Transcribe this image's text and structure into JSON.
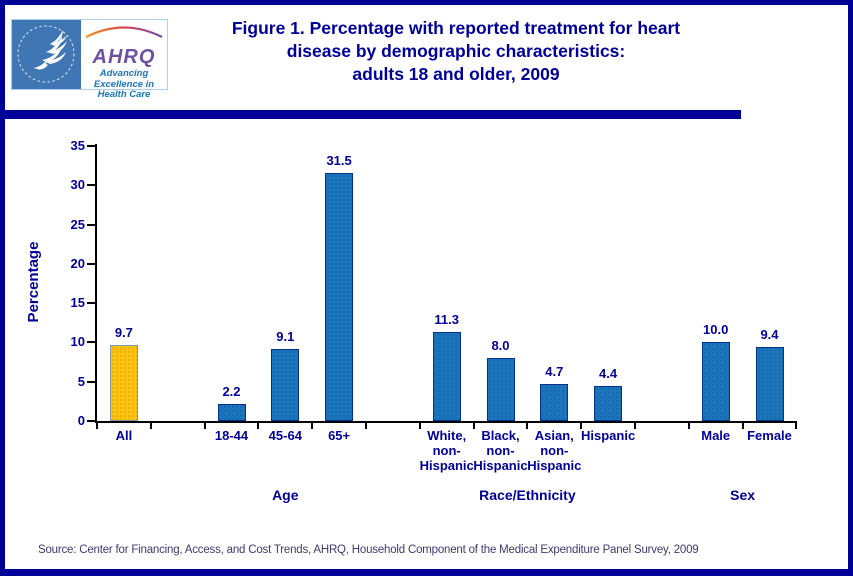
{
  "header": {
    "title_lines": [
      "Figure 1. Percentage with reported treatment for heart",
      "disease by demographic characteristics:",
      "adults 18 and older, 2009"
    ],
    "logo": {
      "hhs_name": "hhs-eagle-logo",
      "acronym": "AHRQ",
      "tagline_lines": [
        "Advancing",
        "Excellence in",
        "Health Care"
      ]
    }
  },
  "chart_data": {
    "type": "bar",
    "title": "Figure 1. Percentage with reported treatment for heart disease by demographic characteristics: adults 18 and older, 2009",
    "xlabel": "",
    "ylabel": "Percentage",
    "ylim": [
      0,
      35
    ],
    "ytick_interval": 5,
    "yticks": [
      0,
      5,
      10,
      15,
      20,
      25,
      30,
      35
    ],
    "grid": false,
    "legend": "none",
    "bar_color": "#1B75BC",
    "bar_border_color": "#003087",
    "highlight_color": "#FFC20E",
    "highlight_border_color": "#7D9AAA",
    "text_color": "#000099",
    "groups": [
      {
        "label": "",
        "categories": [
          {
            "label": "All",
            "label_lines": [
              "All"
            ],
            "value": 9.7,
            "display": "9.7",
            "highlight": true
          }
        ]
      },
      {
        "label": "Age",
        "categories": [
          {
            "label": "18-44",
            "label_lines": [
              "18-44"
            ],
            "value": 2.2,
            "display": "2.2"
          },
          {
            "label": "45-64",
            "label_lines": [
              "45-64"
            ],
            "value": 9.1,
            "display": "9.1"
          },
          {
            "label": "65+",
            "label_lines": [
              "65+"
            ],
            "value": 31.5,
            "display": "31.5"
          }
        ]
      },
      {
        "label": "Race/Ethnicity",
        "categories": [
          {
            "label": "White, non-Hispanic",
            "label_lines": [
              "White,",
              "non-",
              "Hispanic"
            ],
            "value": 11.3,
            "display": "11.3"
          },
          {
            "label": "Black, non-Hispanic",
            "label_lines": [
              "Black,",
              "non-",
              "Hispanic"
            ],
            "value": 8.0,
            "display": "8.0"
          },
          {
            "label": "Asian, non-Hispanic",
            "label_lines": [
              "Asian,",
              "non-",
              "Hispanic"
            ],
            "value": 4.7,
            "display": "4.7"
          },
          {
            "label": "Hispanic",
            "label_lines": [
              "Hispanic"
            ],
            "value": 4.4,
            "display": "4.4"
          }
        ]
      },
      {
        "label": "Sex",
        "categories": [
          {
            "label": "Male",
            "label_lines": [
              "Male"
            ],
            "value": 10.0,
            "display": "10.0"
          },
          {
            "label": "Female",
            "label_lines": [
              "Female"
            ],
            "value": 9.4,
            "display": "9.4"
          }
        ]
      }
    ]
  },
  "footer": {
    "source": "Source: Center for Financing, Access, and Cost Trends, AHRQ, Household Component of the Medical Expenditure Panel Survey, 2009"
  }
}
